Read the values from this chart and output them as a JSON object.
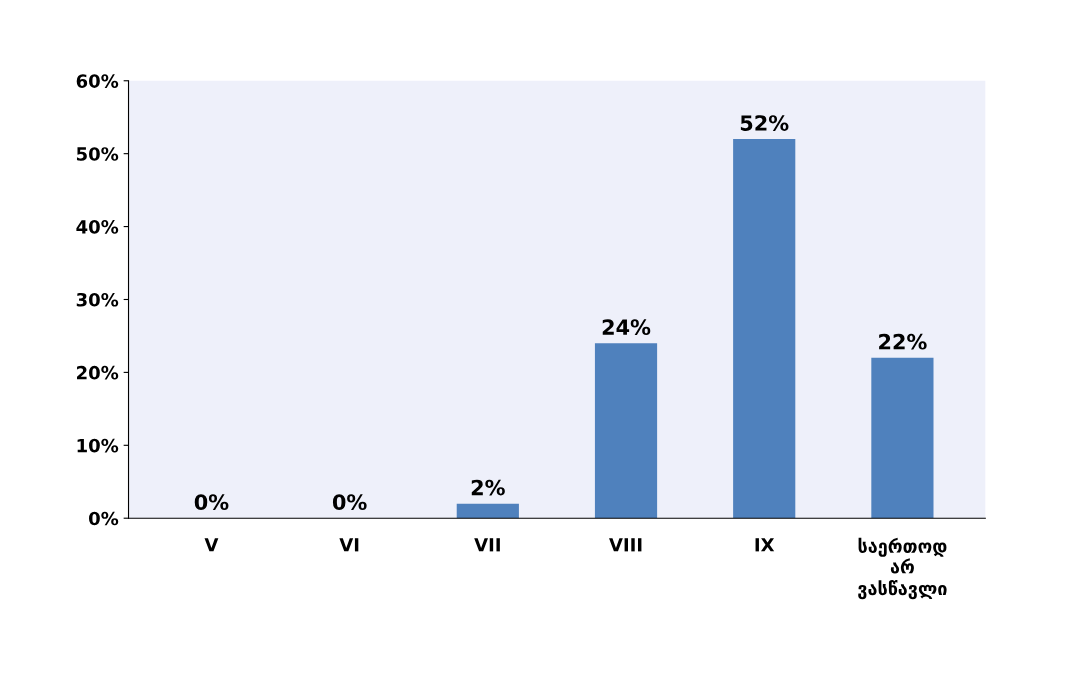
{
  "chart_data": {
    "type": "bar",
    "categories": [
      "V",
      "VI",
      "VII",
      "VIII",
      "IX",
      "საერთოდ არ ვასწავლი"
    ],
    "values": [
      0,
      0,
      2,
      24,
      52,
      22
    ],
    "color": "#4f81bd",
    "value_labels": [
      "0%",
      "0%",
      "2%",
      "24%",
      "52%",
      "22%"
    ],
    "ylim": [
      0,
      60
    ],
    "yticks": [
      {
        "value": 0,
        "label": "0%"
      },
      {
        "value": 10,
        "label": "10%"
      },
      {
        "value": 20,
        "label": "20%"
      },
      {
        "value": 30,
        "label": "30%"
      },
      {
        "value": 40,
        "label": "40%"
      },
      {
        "value": 50,
        "label": "50%"
      },
      {
        "value": 60,
        "label": "60%"
      }
    ],
    "grid": false
  }
}
